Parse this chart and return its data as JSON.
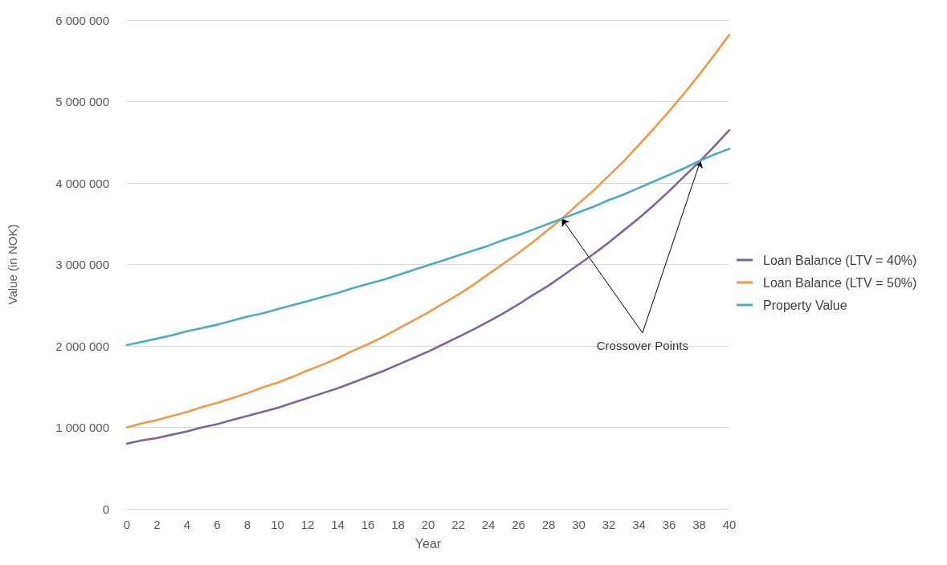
{
  "chart_data": {
    "type": "line",
    "xlabel": "Year",
    "ylabel": "Value (in NOK)",
    "x": [
      0,
      1,
      2,
      3,
      4,
      5,
      6,
      7,
      8,
      9,
      10,
      11,
      12,
      13,
      14,
      15,
      16,
      17,
      18,
      19,
      20,
      21,
      22,
      23,
      24,
      25,
      26,
      27,
      28,
      29,
      30,
      31,
      32,
      33,
      34,
      35,
      36,
      37,
      38,
      39,
      40
    ],
    "series": [
      {
        "name": "Loan Balance (LTV = 40%)",
        "color": "#8064a2",
        "values": [
          800000,
          840000,
          870000,
          910000,
          950000,
          1000000,
          1040000,
          1090000,
          1140000,
          1190000,
          1240000,
          1300000,
          1360000,
          1420000,
          1480000,
          1550000,
          1620000,
          1690000,
          1770000,
          1850000,
          1930000,
          2020000,
          2110000,
          2200000,
          2300000,
          2400000,
          2510000,
          2630000,
          2740000,
          2870000,
          3000000,
          3130000,
          3270000,
          3420000,
          3570000,
          3730000,
          3900000,
          4080000,
          4260000,
          4450000,
          4650000
        ]
      },
      {
        "name": "Loan Balance (LTV = 50%)",
        "color": "#f79646",
        "values": [
          1000000,
          1050000,
          1090000,
          1140000,
          1190000,
          1250000,
          1300000,
          1360000,
          1420000,
          1490000,
          1550000,
          1620000,
          1700000,
          1770000,
          1850000,
          1940000,
          2020000,
          2110000,
          2210000,
          2310000,
          2410000,
          2520000,
          2630000,
          2750000,
          2880000,
          3010000,
          3140000,
          3280000,
          3430000,
          3580000,
          3750000,
          3910000,
          4090000,
          4270000,
          4470000,
          4670000,
          4880000,
          5100000,
          5330000,
          5570000,
          5820000
        ]
      },
      {
        "name": "Property Value",
        "color": "#4bacc6",
        "values": [
          2010000,
          2050000,
          2090000,
          2130000,
          2180000,
          2220000,
          2260000,
          2310000,
          2360000,
          2400000,
          2450000,
          2500000,
          2550000,
          2600000,
          2650000,
          2710000,
          2760000,
          2810000,
          2870000,
          2930000,
          2990000,
          3050000,
          3110000,
          3170000,
          3230000,
          3300000,
          3360000,
          3430000,
          3500000,
          3570000,
          3640000,
          3710000,
          3790000,
          3860000,
          3940000,
          4020000,
          4100000,
          4180000,
          4270000,
          4350000,
          4420000
        ]
      }
    ],
    "xlim": [
      0,
      40
    ],
    "xticks": [
      0,
      2,
      4,
      6,
      8,
      10,
      12,
      14,
      16,
      18,
      20,
      22,
      24,
      26,
      28,
      30,
      32,
      34,
      36,
      38,
      40
    ],
    "ylim": [
      0,
      6000000
    ],
    "yticks": [
      {
        "value": 0,
        "label": "0"
      },
      {
        "value": 1000000,
        "label": "1 000 000"
      },
      {
        "value": 2000000,
        "label": "2 000 000"
      },
      {
        "value": 3000000,
        "label": "3 000 000"
      },
      {
        "value": 4000000,
        "label": "4 000 000"
      },
      {
        "value": 5000000,
        "label": "5 000 000"
      },
      {
        "value": 6000000,
        "label": "6 000 000"
      }
    ],
    "annotations": [
      {
        "text": "Crossover Points",
        "x": 28.9,
        "y": 3540000
      }
    ],
    "grid": "y",
    "legend": "right",
    "marker": "none",
    "line_style": "solid"
  }
}
